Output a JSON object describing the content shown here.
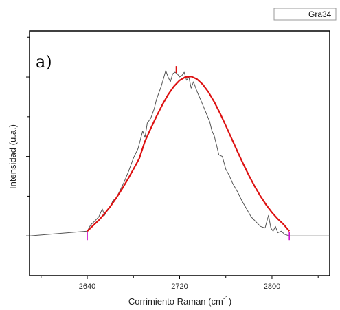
{
  "chart_data": {
    "type": "line",
    "panel_label": "a)",
    "xlabel": {
      "main": "Corrimiento Raman (cm",
      "sup": "-1",
      "tail": ")"
    },
    "ylabel": "Intensidad (u.a.)",
    "xlim": [
      2590,
      2850
    ],
    "ylim": [
      -0.25,
      1.29
    ],
    "xticks": [
      "2640",
      "2720",
      "2800"
    ],
    "xtick_values": [
      2640,
      2720,
      2800
    ],
    "ytick_values": [
      0,
      0.5,
      1.0
    ],
    "legend": {
      "position": "top-right",
      "entries": [
        "Gra34"
      ]
    },
    "colors": {
      "data": "#555555",
      "fit": "#dd1111",
      "markers": "#cc00cc",
      "peak_marker": "#dd1111"
    },
    "range_markers": [
      2640,
      2815
    ],
    "peak_marker": 2717,
    "series": [
      {
        "name": "Gra34",
        "x": [
          2590,
          2640,
          2643,
          2646,
          2650,
          2653,
          2655,
          2657,
          2660,
          2662,
          2665,
          2668,
          2672,
          2676,
          2680,
          2684,
          2688,
          2690,
          2692,
          2695,
          2698,
          2700,
          2702,
          2704,
          2706,
          2708,
          2710,
          2712,
          2714,
          2716,
          2718,
          2720,
          2722,
          2724,
          2726,
          2728,
          2730,
          2732,
          2735,
          2738,
          2742,
          2746,
          2748,
          2750,
          2752,
          2754,
          2757,
          2760,
          2763,
          2766,
          2770,
          2774,
          2778,
          2782,
          2786,
          2790,
          2794,
          2797,
          2799,
          2801,
          2803,
          2805,
          2808,
          2811,
          2815,
          2850
        ],
        "y": [
          0,
          0.03,
          0.07,
          0.09,
          0.12,
          0.17,
          0.13,
          0.16,
          0.18,
          0.22,
          0.24,
          0.28,
          0.34,
          0.41,
          0.49,
          0.55,
          0.66,
          0.62,
          0.71,
          0.74,
          0.8,
          0.86,
          0.9,
          0.94,
          0.99,
          1.04,
          1.0,
          0.97,
          1.02,
          1.03,
          1.02,
          1.0,
          1.01,
          1.03,
          0.98,
          1.0,
          0.93,
          0.97,
          0.91,
          0.86,
          0.79,
          0.72,
          0.66,
          0.63,
          0.57,
          0.51,
          0.5,
          0.42,
          0.38,
          0.33,
          0.28,
          0.22,
          0.17,
          0.12,
          0.09,
          0.06,
          0.05,
          0.13,
          0.05,
          0.03,
          0.06,
          0.02,
          0.03,
          0.01,
          0.0,
          0
        ]
      },
      {
        "name": "",
        "x": [
          2640,
          2645,
          2650,
          2655,
          2660,
          2665,
          2670,
          2675,
          2680,
          2685,
          2690,
          2695,
          2700,
          2705,
          2710,
          2715,
          2720,
          2725,
          2730,
          2735,
          2740,
          2745,
          2750,
          2755,
          2760,
          2765,
          2770,
          2775,
          2780,
          2785,
          2790,
          2795,
          2800,
          2805,
          2810,
          2815
        ],
        "y": [
          0.03,
          0.065,
          0.099,
          0.14,
          0.186,
          0.238,
          0.294,
          0.355,
          0.42,
          0.487,
          0.596,
          0.676,
          0.753,
          0.825,
          0.889,
          0.941,
          0.979,
          1.0,
          1.003,
          0.987,
          0.954,
          0.905,
          0.843,
          0.772,
          0.694,
          0.614,
          0.533,
          0.455,
          0.381,
          0.312,
          0.25,
          0.195,
          0.147,
          0.107,
          0.073,
          0.03
        ]
      }
    ]
  }
}
